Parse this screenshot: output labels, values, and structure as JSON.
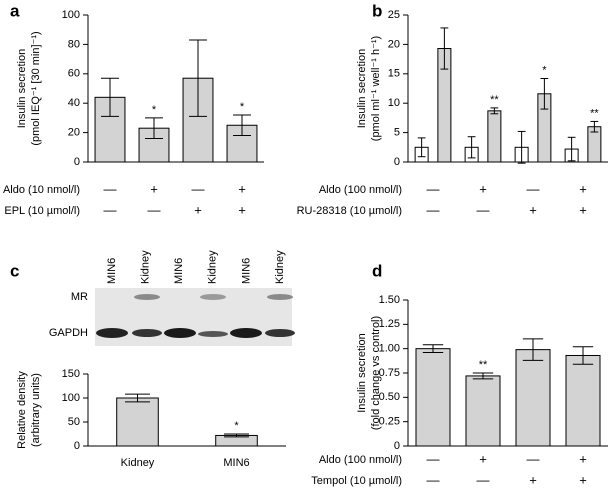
{
  "chart_data": [
    {
      "panel": "a",
      "type": "bar",
      "ylabel": [
        "Insulin secretion",
        "(pmol IEQ⁻¹ [30 min]⁻¹)"
      ],
      "ylim": [
        0,
        100
      ],
      "yticks": [
        0,
        20,
        40,
        60,
        80,
        100
      ],
      "series": [
        {
          "color": "#d3d3d3",
          "values": [
            44,
            23,
            57,
            25
          ],
          "errors": [
            13,
            7,
            26,
            7
          ],
          "significance": [
            null,
            "*",
            null,
            "*"
          ]
        }
      ],
      "conditions": [
        {
          "label": "Aldo (10 nmol/l)",
          "values": [
            "—",
            "+",
            "—",
            "+"
          ]
        },
        {
          "label": "EPL (10 µmol/l)",
          "values": [
            "—",
            "—",
            "+",
            "+"
          ]
        }
      ]
    },
    {
      "panel": "b",
      "type": "bar",
      "ylabel": [
        "Insulin secretion",
        "(pmol ml⁻¹ well⁻¹ h⁻¹)"
      ],
      "ylim": [
        0,
        25
      ],
      "yticks": [
        0,
        5,
        10,
        15,
        20,
        25
      ],
      "series": [
        {
          "color": "#ffffff",
          "values": [
            2.5,
            2.5,
            2.5,
            2.2
          ],
          "errors": [
            1.6,
            1.8,
            2.7,
            2.0
          ]
        },
        {
          "color": "#d3d3d3",
          "values": [
            19.3,
            8.7,
            11.6,
            6.0
          ],
          "errors": [
            3.5,
            0.5,
            2.6,
            0.9
          ],
          "significance": [
            null,
            "**",
            "*",
            "**"
          ]
        }
      ],
      "conditions": [
        {
          "label": "Aldo (100 nmol/l)",
          "values": [
            "—",
            "+",
            "—",
            "+"
          ]
        },
        {
          "label": "RU-28318 (10 µmol/l)",
          "values": [
            "—",
            "—",
            "+",
            "+"
          ]
        }
      ]
    },
    {
      "panel": "c",
      "type": "bar",
      "ylabel": [
        "Relative density",
        "(arbitrary units)"
      ],
      "blot": {
        "lanes": [
          "MIN6",
          "Kidney",
          "MIN6",
          "Kidney",
          "MIN6",
          "Kidney"
        ],
        "rows": [
          "MR",
          "GAPDH"
        ]
      },
      "categories": [
        "Kidney",
        "MIN6"
      ],
      "ylim": [
        0,
        150
      ],
      "yticks": [
        0,
        50,
        100,
        150
      ],
      "series": [
        {
          "color": "#d3d3d3",
          "values": [
            100,
            22
          ],
          "errors": [
            8,
            3
          ],
          "significance": [
            null,
            "*"
          ]
        }
      ]
    },
    {
      "panel": "d",
      "type": "bar",
      "ylabel": [
        "Insulin secretion",
        "(fold change vs control)"
      ],
      "ylim": [
        0,
        1.5
      ],
      "yticks": [
        0,
        0.25,
        {
          "value": 0.5,
          "label": "0.50"
        },
        0.75,
        {
          "value": 1,
          "label": "1.00"
        },
        1.25,
        {
          "value": 1.5,
          "label": "1.50"
        }
      ],
      "series": [
        {
          "color": "#d3d3d3",
          "values": [
            1.0,
            0.72,
            0.99,
            0.93
          ],
          "errors": [
            0.04,
            0.03,
            0.11,
            0.09
          ],
          "significance": [
            null,
            "**",
            null,
            null
          ]
        }
      ],
      "conditions": [
        {
          "label": "Aldo (100 nmol/l)",
          "values": [
            "—",
            "+",
            "—",
            "+"
          ]
        },
        {
          "label": "Tempol (10 µmol/l)",
          "values": [
            "—",
            "—",
            "+",
            "+"
          ]
        }
      ]
    }
  ]
}
